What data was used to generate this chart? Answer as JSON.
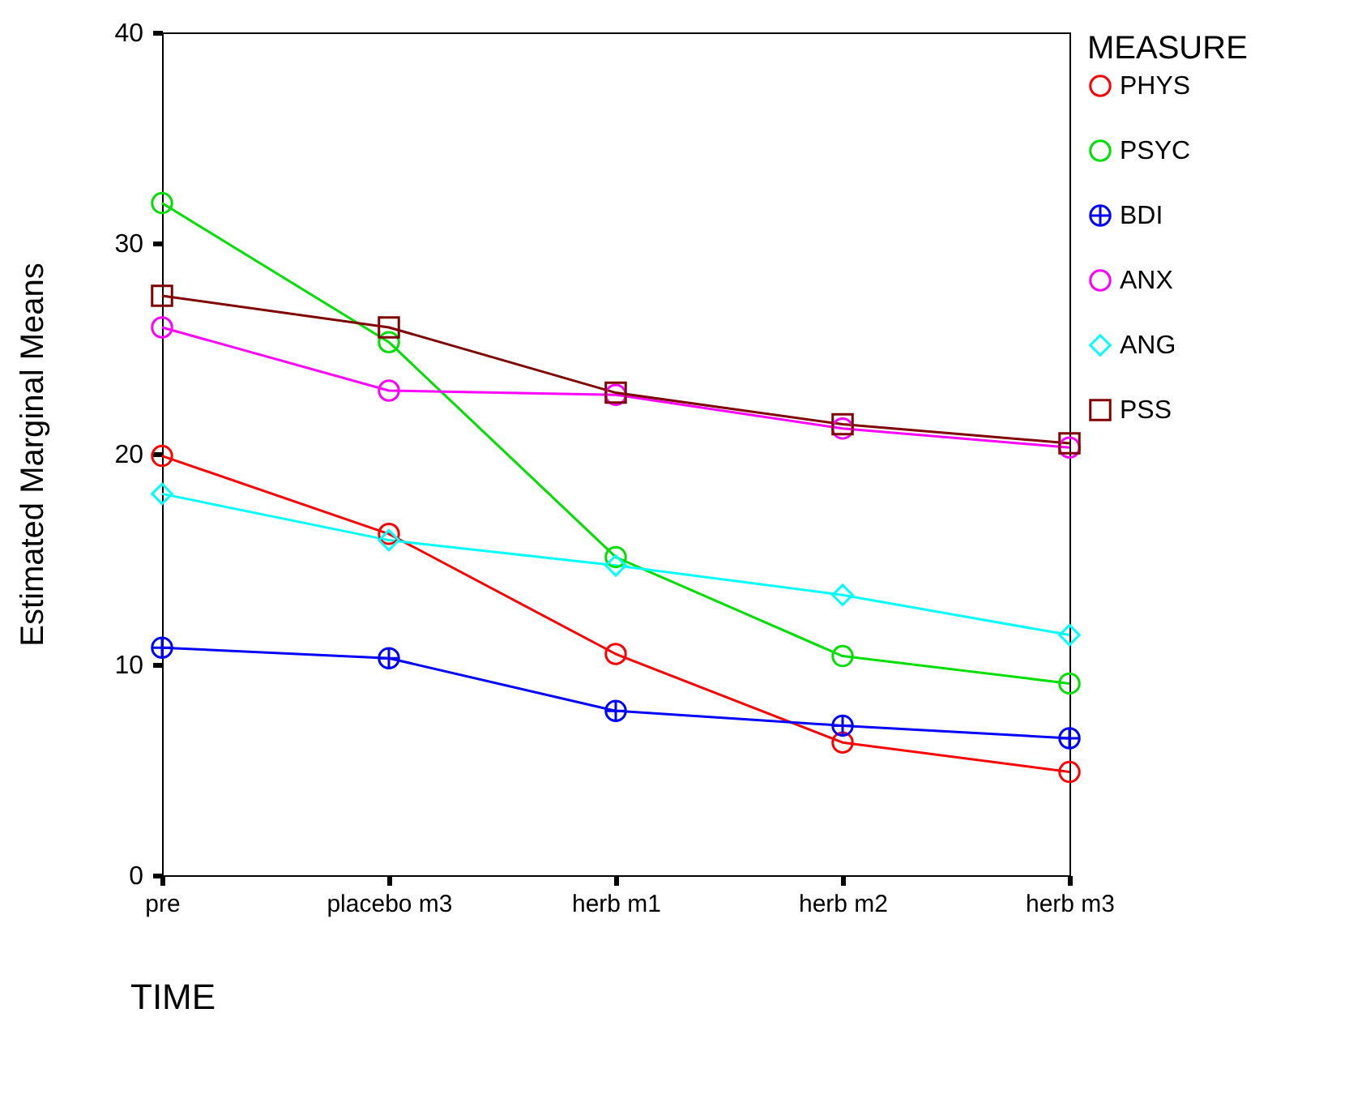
{
  "chart_data": {
    "type": "line",
    "xlabel": "TIME",
    "ylabel": "Estimated Marginal Means",
    "legend_title": "MEASURE",
    "categories": [
      "pre",
      "placebo m3",
      "herb m1",
      "herb m2",
      "herb m3"
    ],
    "series": [
      {
        "name": "PHYS",
        "color": "#ff0000",
        "marker": "circle",
        "values": [
          19.9,
          16.2,
          10.5,
          6.3,
          4.9
        ]
      },
      {
        "name": "PSYC",
        "color": "#00e000",
        "marker": "circle",
        "values": [
          31.9,
          25.3,
          15.1,
          10.4,
          9.1
        ]
      },
      {
        "name": "BDI",
        "color": "#0000ff",
        "marker": "cross",
        "values": [
          10.8,
          10.3,
          7.8,
          7.1,
          6.5
        ]
      },
      {
        "name": "ANX",
        "color": "#ff00ff",
        "marker": "circle",
        "values": [
          26.0,
          23.0,
          22.8,
          21.2,
          20.3
        ]
      },
      {
        "name": "ANG",
        "color": "#00ffff",
        "marker": "diamond",
        "values": [
          18.1,
          15.9,
          14.7,
          13.3,
          11.4
        ]
      },
      {
        "name": "PSS",
        "color": "#800000",
        "marker": "square",
        "values": [
          27.5,
          26.0,
          22.9,
          21.4,
          20.5
        ]
      }
    ],
    "ylim": [
      0,
      40
    ],
    "yticks": [
      0,
      10,
      20,
      30,
      40
    ],
    "grid": false,
    "legend": "right"
  }
}
